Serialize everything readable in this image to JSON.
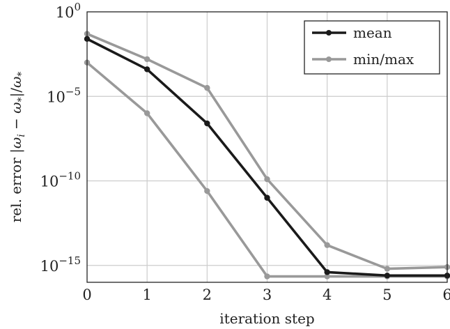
{
  "chart_data": {
    "type": "line",
    "xlabel": "iteration step",
    "ylabel": "rel. error |ω_i − ω_*|/ω_*",
    "ylabel_parts": [
      "rel. error |",
      "ω",
      "i",
      " − ",
      "ω",
      "*",
      "|/",
      "ω",
      "*"
    ],
    "x": [
      0,
      1,
      2,
      3,
      4,
      5,
      6
    ],
    "xlim": [
      0,
      6
    ],
    "ylim_log10": [
      -16,
      0
    ],
    "yscale": "log",
    "grid": true,
    "legend_position": "top-right",
    "x_ticks": [
      "0",
      "1",
      "2",
      "3",
      "4",
      "5",
      "6"
    ],
    "y_ticks": [
      {
        "base": "10",
        "exp": "0",
        "log10": 0
      },
      {
        "base": "10",
        "exp": "−5",
        "log10": -5
      },
      {
        "base": "10",
        "exp": "−10",
        "log10": -10
      },
      {
        "base": "10",
        "exp": "−15",
        "log10": -15
      }
    ],
    "series": [
      {
        "name": "min/max",
        "role": "max",
        "color": "#999999",
        "values_log10": [
          -1.3,
          -2.8,
          -4.5,
          -9.9,
          -13.8,
          -15.2,
          -15.1
        ]
      },
      {
        "name": "",
        "role": "min",
        "color": "#999999",
        "values_log10": [
          -3.0,
          -6.0,
          -10.6,
          -15.65,
          -15.65,
          -15.65,
          -15.65
        ]
      },
      {
        "name": "mean",
        "role": "mean",
        "color": "#1a1a1a",
        "values_log10": [
          -1.6,
          -3.4,
          -6.6,
          -11.0,
          -15.4,
          -15.6,
          -15.6
        ]
      }
    ],
    "legend": [
      {
        "label": "mean",
        "color": "#1a1a1a"
      },
      {
        "label": "min/max",
        "color": "#999999"
      }
    ]
  }
}
